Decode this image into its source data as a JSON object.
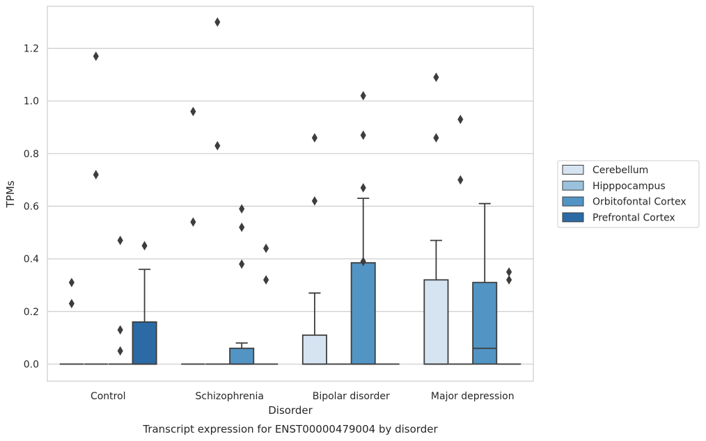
{
  "chart_data": {
    "type": "box",
    "title": "",
    "caption": "Transcript expression for ENST00000479004 by disorder",
    "xlabel": "Disorder",
    "ylabel": "TPMs",
    "ylim": [
      -0.065,
      1.36
    ],
    "yticks": [
      "0.0",
      "0.2",
      "0.4",
      "0.6",
      "0.8",
      "1.0",
      "1.2"
    ],
    "grid": "horizontal",
    "legend_position": "right",
    "categories": [
      "Control",
      "Schizophrenia",
      "Bipolar disorder",
      "Major depression"
    ],
    "series": [
      {
        "name": "Cerebellum",
        "color": "#d6e4f2",
        "boxes": [
          {
            "q1": 0,
            "median": 0,
            "q3": 0,
            "whisker_low": 0,
            "whisker_high": 0,
            "outliers": [
              0.31,
              0.23
            ]
          },
          {
            "q1": 0,
            "median": 0,
            "q3": 0,
            "whisker_low": 0,
            "whisker_high": 0,
            "outliers": [
              0.96,
              0.54
            ]
          },
          {
            "q1": 0,
            "median": 0,
            "q3": 0.11,
            "whisker_low": 0,
            "whisker_high": 0.27,
            "outliers": [
              0.86,
              0.62
            ]
          },
          {
            "q1": 0,
            "median": 0,
            "q3": 0.32,
            "whisker_low": 0,
            "whisker_high": 0.47,
            "outliers": [
              1.09,
              0.86
            ]
          }
        ]
      },
      {
        "name": "Hipppocampus",
        "color": "#9ac2dd",
        "boxes": [
          {
            "q1": 0,
            "median": 0,
            "q3": 0,
            "whisker_low": 0,
            "whisker_high": 0,
            "outliers": [
              1.17,
              0.72
            ]
          },
          {
            "q1": 0,
            "median": 0,
            "q3": 0,
            "whisker_low": 0,
            "whisker_high": 0,
            "outliers": [
              1.3,
              0.83
            ]
          },
          {
            "q1": 0,
            "median": 0,
            "q3": 0,
            "whisker_low": 0,
            "whisker_high": 0,
            "outliers": []
          },
          {
            "q1": 0,
            "median": 0,
            "q3": 0,
            "whisker_low": 0,
            "whisker_high": 0,
            "outliers": [
              0.93,
              0.7
            ]
          }
        ]
      },
      {
        "name": "Orbitofontal Cortex",
        "color": "#5294c4",
        "boxes": [
          {
            "q1": 0,
            "median": 0,
            "q3": 0,
            "whisker_low": 0,
            "whisker_high": 0,
            "outliers": [
              0.47,
              0.13,
              0.05
            ]
          },
          {
            "q1": 0,
            "median": 0,
            "q3": 0.06,
            "whisker_low": 0,
            "whisker_high": 0.08,
            "outliers": [
              0.59,
              0.52,
              0.38
            ]
          },
          {
            "q1": 0,
            "median": 0,
            "q3": 0.385,
            "whisker_low": 0,
            "whisker_high": 0.63,
            "outliers": [
              1.02,
              0.87,
              0.67,
              0.39
            ]
          },
          {
            "q1": 0,
            "median": 0.06,
            "q3": 0.31,
            "whisker_low": 0,
            "whisker_high": 0.61,
            "outliers": []
          }
        ]
      },
      {
        "name": "Prefrontal Cortex",
        "color": "#2b6aa5",
        "boxes": [
          {
            "q1": 0,
            "median": 0,
            "q3": 0.16,
            "whisker_low": 0,
            "whisker_high": 0.36,
            "outliers": [
              0.45
            ]
          },
          {
            "q1": 0,
            "median": 0,
            "q3": 0,
            "whisker_low": 0,
            "whisker_high": 0,
            "outliers": [
              0.44,
              0.32
            ]
          },
          {
            "q1": 0,
            "median": 0,
            "q3": 0,
            "whisker_low": 0,
            "whisker_high": 0,
            "outliers": []
          },
          {
            "q1": 0,
            "median": 0,
            "q3": 0,
            "whisker_low": 0,
            "whisker_high": 0,
            "outliers": [
              0.35,
              0.32
            ]
          }
        ]
      }
    ]
  }
}
